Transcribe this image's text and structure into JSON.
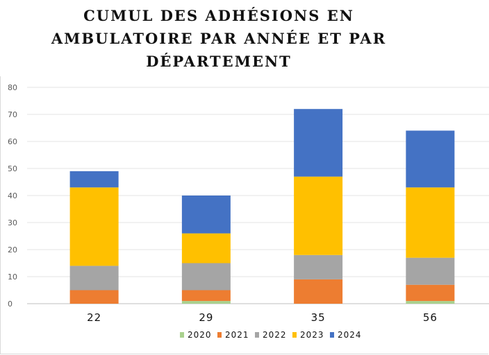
{
  "chart_data": {
    "type": "bar",
    "stacked": true,
    "title": "CUMUL DES ADHÉSIONS EN AMBULATOIRE PAR ANNÉE ET PAR DÉPARTEMENT",
    "title_lines": [
      "CUMUL DES ADHÉSIONS EN",
      "AMBULATOIRE PAR ANNÉE ET PAR",
      "DÉPARTEMENT"
    ],
    "categories": [
      "22",
      "29",
      "35",
      "56"
    ],
    "ylim": [
      0,
      80
    ],
    "yticks": [
      0,
      10,
      20,
      30,
      40,
      50,
      60,
      70,
      80
    ],
    "grid": true,
    "legend_position": "bottom",
    "series": [
      {
        "name": "2020",
        "color": "#a9d18e",
        "values": [
          0,
          1,
          0,
          1
        ]
      },
      {
        "name": "2021",
        "color": "#ed7d31",
        "values": [
          5,
          4,
          9,
          6
        ]
      },
      {
        "name": "2022",
        "color": "#a5a5a5",
        "values": [
          9,
          10,
          9,
          10
        ]
      },
      {
        "name": "2023",
        "color": "#ffc000",
        "values": [
          29,
          11,
          29,
          26
        ]
      },
      {
        "name": "2024",
        "color": "#4472c4",
        "values": [
          6,
          14,
          25,
          21
        ]
      }
    ]
  }
}
